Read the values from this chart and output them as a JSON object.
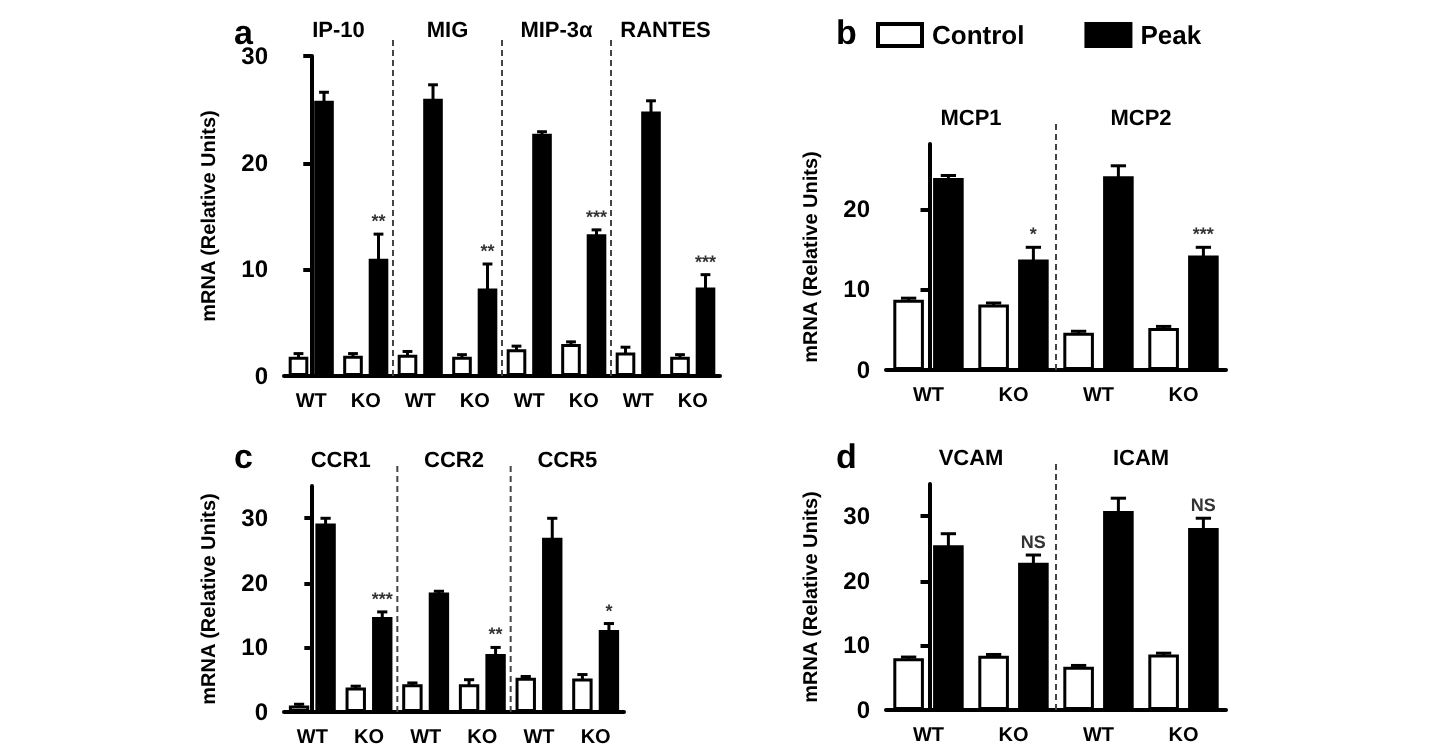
{
  "chart_data": [
    {
      "type": "bar",
      "title": "a",
      "ylabel": "mRNA (Relative Units)",
      "categories": [
        "WT",
        "KO",
        "WT",
        "KO",
        "WT",
        "KO",
        "WT",
        "KO"
      ],
      "annotations": [
        "IP-10",
        "MIG",
        "MIP-3α",
        "RANTES"
      ],
      "series": [
        {
          "color": "#ffffff",
          "values": [
            1.8,
            1.9,
            2.0,
            1.8,
            2.5,
            3.0,
            2.2,
            1.8
          ],
          "errors": [
            0.3,
            0.2,
            0.3,
            0.2,
            0.3,
            0.2,
            0.5,
            0.2
          ]
        },
        {
          "color": "#000000",
          "values": [
            25.8,
            11.0,
            26.0,
            8.2,
            22.7,
            13.3,
            24.8,
            8.3
          ],
          "errors": [
            0.8,
            2.3,
            1.3,
            2.3,
            0.2,
            0.4,
            1.0,
            1.2
          ],
          "value_labels": [
            null,
            "**",
            null,
            "**",
            null,
            "***",
            null,
            "***"
          ]
        }
      ],
      "ylim": [
        0,
        30
      ],
      "yticks": [
        0,
        10,
        20,
        30
      ],
      "grid": false,
      "legend": false
    },
    {
      "type": "bar",
      "title": "b",
      "ylabel": "mRNA (Relative Units)",
      "categories": [
        "WT",
        "KO",
        "WT",
        "KO"
      ],
      "annotations": [
        "MCP1",
        "MCP2"
      ],
      "series": [
        {
          "name": "Control",
          "color": "#ffffff",
          "values": [
            8.7,
            8.1,
            4.6,
            5.2
          ],
          "errors": [
            0.2,
            0.2,
            0.2,
            0.2
          ]
        },
        {
          "name": "Peak",
          "color": "#000000",
          "values": [
            23.8,
            13.7,
            24.0,
            14.2
          ],
          "errors": [
            0.3,
            1.5,
            1.3,
            1.0
          ],
          "value_labels": [
            null,
            "*",
            null,
            "***"
          ]
        }
      ],
      "ylim": [
        0,
        28
      ],
      "yticks": [
        0,
        10,
        20
      ],
      "grid": false,
      "legend": "top"
    },
    {
      "type": "bar",
      "title": "c",
      "ylabel": "mRNA (Relative Units)",
      "categories": [
        "WT",
        "KO",
        "WT",
        "KO",
        "WT",
        "KO"
      ],
      "annotations": [
        "CCR1",
        "CCR2",
        "CCR5"
      ],
      "series": [
        {
          "color": "#ffffff",
          "values": [
            1.0,
            3.8,
            4.3,
            4.3,
            5.3,
            5.2
          ],
          "errors": [
            0.2,
            0.2,
            0.2,
            0.7,
            0.2,
            0.6
          ]
        },
        {
          "color": "#000000",
          "values": [
            29.2,
            14.7,
            18.5,
            9.0,
            27.0,
            12.7
          ],
          "errors": [
            0.8,
            0.8,
            0.2,
            1.0,
            3.0,
            1.0
          ],
          "value_labels": [
            null,
            "***",
            null,
            "**",
            null,
            "*"
          ]
        }
      ],
      "ylim": [
        0,
        35
      ],
      "yticks": [
        0,
        10,
        20,
        30
      ],
      "grid": false,
      "legend": false
    },
    {
      "type": "bar",
      "title": "d",
      "ylabel": "mRNA (Relative Units)",
      "categories": [
        "WT",
        "KO",
        "WT",
        "KO"
      ],
      "annotations": [
        "VCAM",
        "ICAM"
      ],
      "series": [
        {
          "color": "#ffffff",
          "values": [
            8.0,
            8.4,
            6.7,
            8.6
          ],
          "errors": [
            0.2,
            0.2,
            0.2,
            0.2
          ]
        },
        {
          "color": "#000000",
          "values": [
            25.5,
            22.8,
            30.8,
            28.2
          ],
          "errors": [
            1.8,
            1.2,
            2.0,
            1.5
          ],
          "value_labels": [
            null,
            "NS",
            null,
            "NS"
          ]
        }
      ],
      "ylim": [
        0,
        35
      ],
      "yticks": [
        0,
        10,
        20,
        30
      ],
      "grid": false,
      "legend": false
    }
  ]
}
